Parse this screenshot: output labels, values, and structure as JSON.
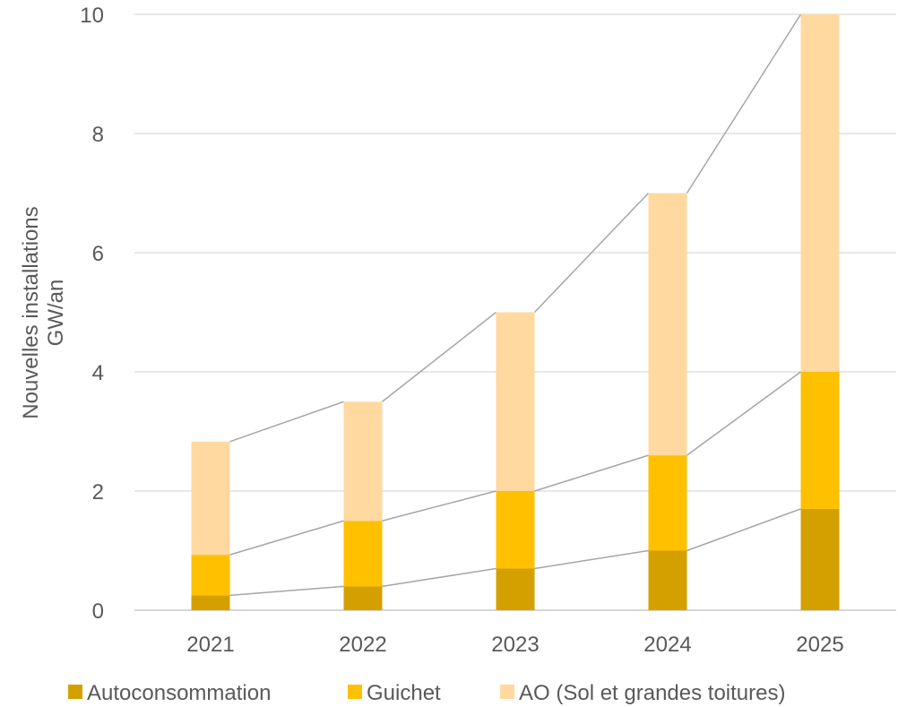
{
  "chart_data": {
    "type": "bar",
    "stacked": true,
    "title": "",
    "xlabel": "",
    "ylabel_lines": [
      "Nouvelles installations",
      "GW/an"
    ],
    "categories": [
      "2021",
      "2022",
      "2023",
      "2024",
      "2025"
    ],
    "ylim": [
      0,
      10
    ],
    "yticks": [
      0,
      2,
      4,
      6,
      8,
      10
    ],
    "grid": true,
    "series_lines": true,
    "legend_position": "bottom",
    "series": [
      {
        "name": "Autoconsommation",
        "color": "#D4A000",
        "values": [
          0.25,
          0.4,
          0.7,
          1.0,
          1.7
        ]
      },
      {
        "name": "Guichet",
        "color": "#FFC000",
        "values": [
          0.68,
          1.1,
          1.3,
          1.6,
          2.3
        ]
      },
      {
        "name": "AO (Sol et grandes toitures)",
        "color": "#FFD9A0",
        "values": [
          1.9,
          2.0,
          3.0,
          4.4,
          6.0
        ]
      }
    ],
    "colors": {
      "gridline": "#D9D9D9",
      "connector": "#A6A6A6",
      "text": "#595959"
    }
  }
}
